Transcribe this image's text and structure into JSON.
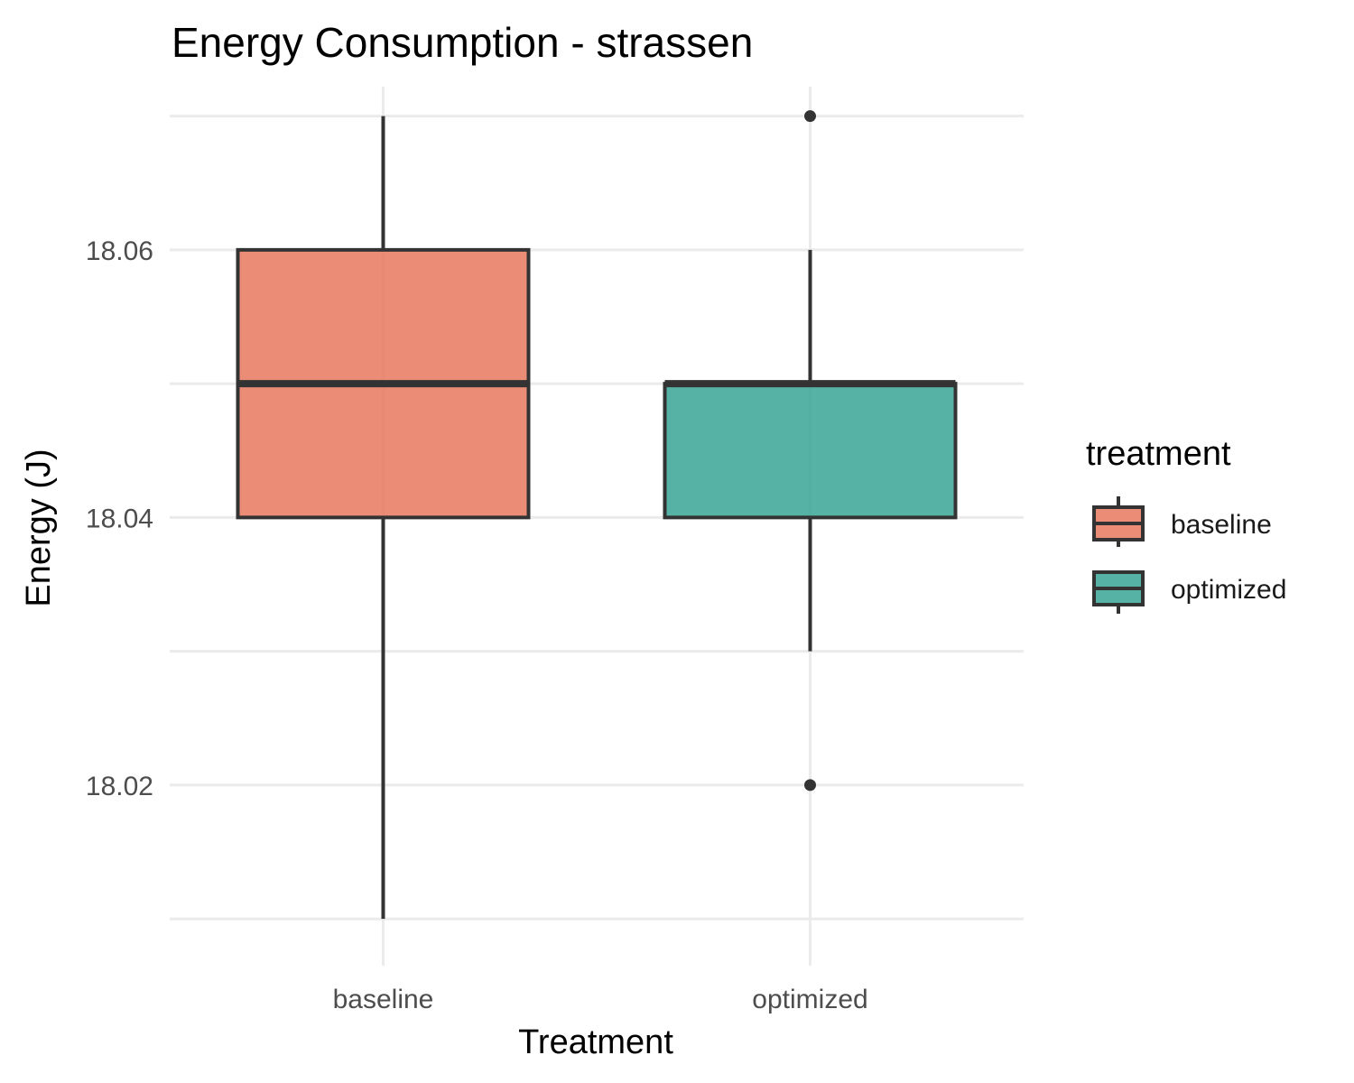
{
  "chart_data": {
    "type": "boxplot",
    "title": "Energy Consumption - strassen",
    "xlabel": "Treatment",
    "ylabel": "Energy (J)",
    "categories": [
      "baseline",
      "optimized"
    ],
    "ylim": [
      18.0065,
      18.0722
    ],
    "y_ticks": [
      18.02,
      18.04,
      18.06
    ],
    "y_tick_labels": [
      "18.02",
      "18.04",
      "18.06"
    ],
    "grid": true,
    "legend": {
      "title": "treatment",
      "position": "right",
      "entries": [
        "baseline",
        "optimized"
      ]
    },
    "series": [
      {
        "name": "baseline",
        "color": "#E8785E",
        "whisker_low": 18.01,
        "q1": 18.04,
        "median": 18.05,
        "q3": 18.06,
        "whisker_high": 18.07,
        "outliers": []
      },
      {
        "name": "optimized",
        "color": "#3AA597",
        "whisker_low": 18.03,
        "q1": 18.04,
        "median": 18.05,
        "q3": 18.05,
        "whisker_high": 18.06,
        "outliers": [
          18.02,
          18.07
        ]
      }
    ]
  }
}
